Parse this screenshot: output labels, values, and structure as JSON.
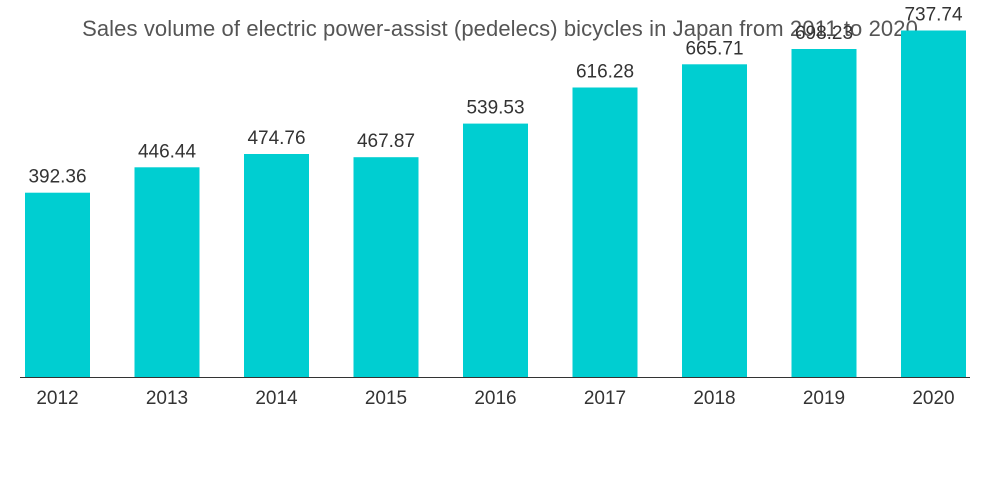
{
  "chart_data": {
    "type": "bar",
    "title": "Sales volume of electric power-assist (pedelecs) bicycles in Japan from 2011 to 2020",
    "categories": [
      "2012",
      "2013",
      "2014",
      "2015",
      "2016",
      "2017",
      "2018",
      "2019",
      "2020"
    ],
    "values": [
      392.36,
      446.44,
      474.76,
      467.87,
      539.53,
      616.28,
      665.71,
      698.23,
      737.74
    ],
    "value_labels": [
      "392.36",
      "446.44",
      "474.76",
      "467.87",
      "539.53",
      "616.28",
      "665.71",
      "698.23",
      "737.74"
    ],
    "xlabel": "",
    "ylabel": "",
    "ylim": [
      0,
      760
    ],
    "grid": false,
    "legend": "none",
    "bar_color": "#00CED1",
    "axis_color": "#333333"
  }
}
